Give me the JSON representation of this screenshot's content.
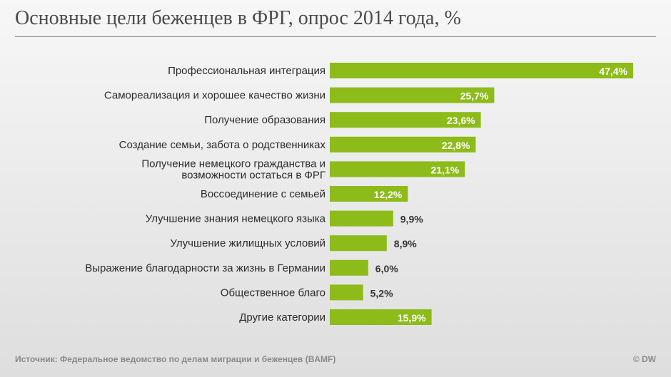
{
  "chart_data": {
    "type": "bar",
    "orientation": "horizontal",
    "title": "Основные цели беженцев в ФРГ, опрос 2014 года, %",
    "categories": [
      [
        "Профессиональная интеграция"
      ],
      [
        "Самореализация и хорошее качество жизни"
      ],
      [
        "Получение образования"
      ],
      [
        "Создание семьи, забота о родственниках"
      ],
      [
        "Получение немецкого гражданства и",
        "возможности остаться в ФРГ"
      ],
      [
        "Воссоединение с семьей"
      ],
      [
        "Улучшение знания немецкого языка"
      ],
      [
        "Улучшение жилищных условий"
      ],
      [
        "Выражение благодарности за жизнь в Германии"
      ],
      [
        "Общественное благо"
      ],
      [
        "Другие категории"
      ]
    ],
    "values": [
      47.4,
      25.7,
      23.6,
      22.8,
      21.1,
      12.2,
      9.9,
      8.9,
      6.0,
      5.2,
      15.9
    ],
    "value_labels": [
      "47,4%",
      "25,7%",
      "23,6%",
      "22,8%",
      "21,1%",
      "12,2%",
      "9,9%",
      "8,9%",
      "6,0%",
      "5,2%",
      "15,9%"
    ],
    "xlim": [
      0,
      47.4
    ],
    "bar_color": "#8dbb1a",
    "source": "Источник: Федеральное ведомство по делам миграции и беженцев (BAMF)",
    "copyright": "© DW"
  }
}
